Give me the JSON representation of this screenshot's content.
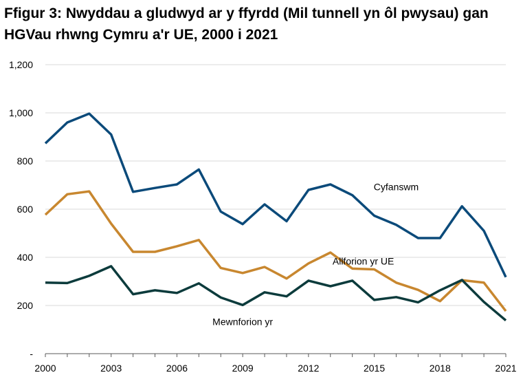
{
  "chart_data": {
    "type": "line",
    "title": "Ffigur 3: Nwyddau a gludwyd ar y ffyrdd (Mil tunnell yn ôl pwysau) gan HGVau rhwng Cymru a'r UE, 2000 i 2021",
    "x": [
      2000,
      2001,
      2002,
      2003,
      2004,
      2005,
      2006,
      2007,
      2008,
      2009,
      2010,
      2011,
      2012,
      2013,
      2014,
      2015,
      2016,
      2017,
      2018,
      2019,
      2020,
      2021
    ],
    "xticks": [
      "2000",
      "2003",
      "2006",
      "2009",
      "2012",
      "2015",
      "2018",
      "2021"
    ],
    "yticks": [
      "-",
      "200",
      "400",
      "600",
      "800",
      "1,000",
      "1,200"
    ],
    "ylim": [
      0,
      1200
    ],
    "xlim": [
      2000,
      2021
    ],
    "grid": true,
    "series": [
      {
        "name": "Cyfanswm",
        "color": "#0b4a7a",
        "values": [
          873,
          960,
          997,
          910,
          672,
          688,
          703,
          765,
          590,
          538,
          620,
          550,
          680,
          703,
          658,
          573,
          535,
          480,
          480,
          612,
          510,
          318
        ]
      },
      {
        "name": "Allforion yr UE",
        "color": "#c8872f",
        "values": [
          577,
          662,
          674,
          540,
          423,
          423,
          446,
          472,
          356,
          335,
          360,
          312,
          375,
          420,
          353,
          350,
          295,
          265,
          218,
          305,
          295,
          177
        ]
      },
      {
        "name": "Mewnforion yr",
        "color": "#0c3b3c",
        "values": [
          295,
          293,
          323,
          363,
          247,
          263,
          252,
          292,
          233,
          202,
          255,
          238,
          303,
          280,
          303,
          223,
          235,
          213,
          263,
          306,
          215,
          138
        ]
      }
    ]
  }
}
